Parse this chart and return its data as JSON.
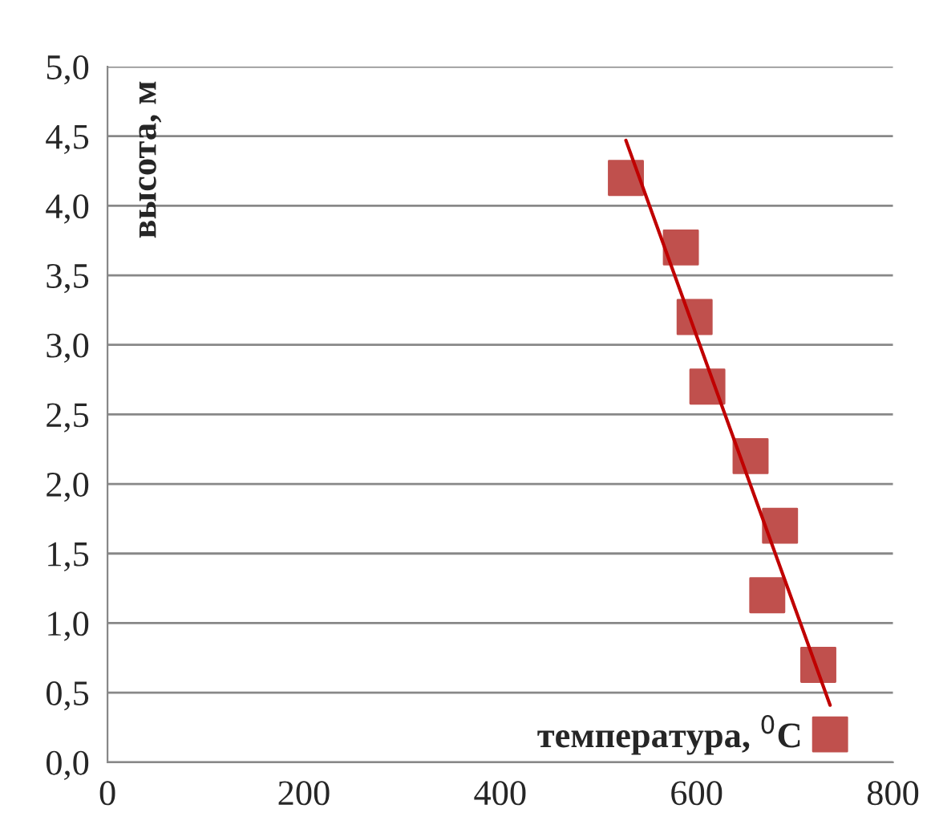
{
  "chart_data": {
    "type": "scatter",
    "xlabel": "температура, $^{0}$C",
    "ylabel": "высота, м",
    "x": [
      528,
      584,
      598,
      611,
      655,
      685,
      672,
      724,
      736
    ],
    "series": [
      {
        "type": "scatter",
        "color": "#c0504d",
        "marker": "square",
        "values": [
          4.2,
          3.7,
          3.2,
          2.7,
          2.2,
          1.7,
          1.2,
          0.7,
          0.2
        ]
      },
      {
        "type": "line",
        "color": "#c00000",
        "marker": "none",
        "x": [
          528,
          736
        ],
        "values": [
          4.47,
          0.41
        ]
      }
    ],
    "xlim": [
      0,
      800
    ],
    "xticks": [
      0,
      200,
      400,
      600,
      800
    ],
    "ylim": [
      0,
      5
    ],
    "yticks": [
      {
        "value": 0,
        "label": "0,0"
      },
      {
        "value": 0.5,
        "label": "0,5"
      },
      {
        "value": 1,
        "label": "1,0"
      },
      {
        "value": 1.5,
        "label": "1,5"
      },
      {
        "value": 2,
        "label": "2,0"
      },
      {
        "value": 2.5,
        "label": "2,5"
      },
      {
        "value": 3,
        "label": "3,0"
      },
      {
        "value": 3.5,
        "label": "3,5"
      },
      {
        "value": 4,
        "label": "4,0"
      },
      {
        "value": 4.5,
        "label": "4,5"
      },
      {
        "value": 5,
        "label": "5,0"
      }
    ],
    "grid": "y",
    "legend": false
  }
}
